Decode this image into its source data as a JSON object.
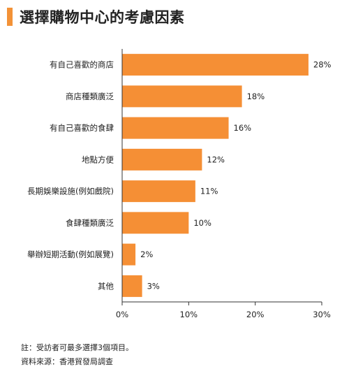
{
  "header": {
    "title": "選擇購物中心的考慮因素"
  },
  "chart_data": {
    "type": "bar",
    "orientation": "horizontal",
    "categories": [
      "有自己喜歡的商店",
      "商店種類廣泛",
      "有自己喜歡的食肆",
      "地點方便",
      "長期娛樂設施(例如戲院)",
      "食肆種類廣泛",
      "舉辦短期活動(例如展覽)",
      "其他"
    ],
    "values": [
      28,
      18,
      16,
      12,
      11,
      10,
      2,
      3
    ],
    "value_labels": [
      "28%",
      "18%",
      "16%",
      "12%",
      "11%",
      "10%",
      "2%",
      "3%"
    ],
    "xlim": [
      0,
      30
    ],
    "xticks": [
      0,
      10,
      20,
      30
    ],
    "xtick_labels": [
      "0%",
      "10%",
      "20%",
      "30%"
    ],
    "bar_color": "#f58f35",
    "grid": false,
    "legend": "none"
  },
  "notes": {
    "line1": "註：受訪者可最多選擇3個項目。",
    "line2": "資料來源：香港貿發局調查"
  }
}
